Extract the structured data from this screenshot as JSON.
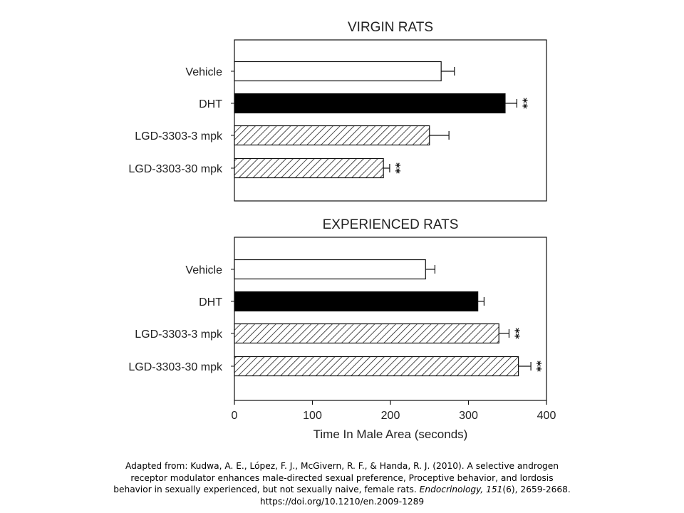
{
  "chart_data": [
    {
      "type": "bar",
      "orientation": "horizontal",
      "title": "VIRGIN RATS",
      "categories": [
        "Vehicle",
        "DHT",
        "LGD-3303-3 mpk",
        "LGD-3303-30 mpk"
      ],
      "values": [
        265,
        347,
        250,
        191
      ],
      "errors": [
        17,
        15,
        25,
        8
      ],
      "significance": [
        "",
        "**",
        "",
        "**"
      ],
      "fills": [
        "white",
        "black",
        "hatched",
        "hatched"
      ],
      "xlim": [
        0,
        400
      ]
    },
    {
      "type": "bar",
      "orientation": "horizontal",
      "title": "EXPERIENCED RATS",
      "categories": [
        "Vehicle",
        "DHT",
        "LGD-3303-3 mpk",
        "LGD-3303-30 mpk"
      ],
      "values": [
        245,
        312,
        339,
        364
      ],
      "errors": [
        12,
        8,
        13,
        16
      ],
      "significance": [
        "",
        "",
        "**",
        "**"
      ],
      "fills": [
        "white",
        "black",
        "hatched",
        "hatched"
      ],
      "xlim": [
        0,
        400
      ],
      "xlabel": "Time In Male Area (seconds)",
      "xticks": [
        0,
        100,
        200,
        300,
        400
      ]
    }
  ],
  "caption": {
    "line1": "Adapted from: Kudwa, A. E., López, F. J., McGivern, R. F., & Handa, R. J. (2010). A selective androgen",
    "line2": "receptor modulator enhances male-directed sexual preference, Proceptive behavior, and lordosis",
    "line3_pre": "behavior in sexually experienced, but not sexually naive, female rats. ",
    "journal": "Endocrinology, 151",
    "line3_post": "(6), 2659-2668.",
    "line4": "https://doi.org/10.1210/en.2009-1289"
  },
  "colors": {
    "bar_edge": "#111111",
    "bar_solid": "#000000",
    "bar_open": "#ffffff"
  }
}
